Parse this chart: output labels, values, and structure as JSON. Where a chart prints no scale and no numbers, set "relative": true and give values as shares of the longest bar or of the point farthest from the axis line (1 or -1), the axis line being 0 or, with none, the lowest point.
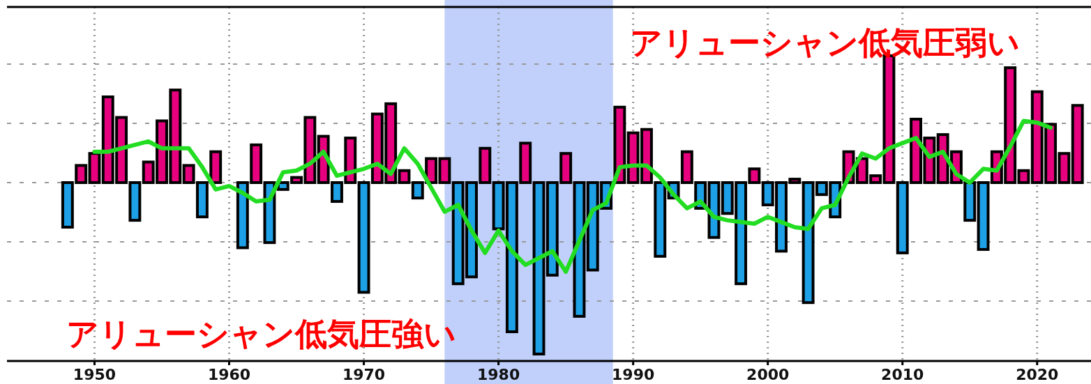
{
  "chart_data": {
    "type": "bar",
    "relative": true,
    "grid": true,
    "x": [
      1948,
      1949,
      1950,
      1951,
      1952,
      1953,
      1954,
      1955,
      1956,
      1957,
      1958,
      1959,
      1960,
      1961,
      1962,
      1963,
      1964,
      1965,
      1966,
      1967,
      1968,
      1969,
      1970,
      1971,
      1972,
      1973,
      1974,
      1975,
      1976,
      1977,
      1978,
      1979,
      1980,
      1981,
      1982,
      1983,
      1984,
      1985,
      1986,
      1987,
      1988,
      1989,
      1990,
      1991,
      1992,
      1993,
      1994,
      1995,
      1996,
      1997,
      1998,
      1999,
      2000,
      2001,
      2002,
      2003,
      2004,
      2005,
      2006,
      2007,
      2008,
      2009,
      2010,
      2011,
      2012,
      2013,
      2014,
      2015,
      2016,
      2017,
      2018,
      2019,
      2020,
      2021,
      2022,
      2023
    ],
    "series": [
      {
        "values": [
          -0.26,
          0.1,
          0.17,
          0.5,
          0.38,
          -0.22,
          0.12,
          0.36,
          0.54,
          0.1,
          -0.2,
          0.18,
          0,
          -0.38,
          0.22,
          -0.35,
          -0.04,
          0.03,
          0.38,
          0.27,
          -0.11,
          0.26,
          -0.64,
          0.4,
          0.46,
          0.07,
          -0.09,
          0.14,
          0.14,
          -0.59,
          -0.55,
          0.2,
          -0.27,
          -0.87,
          0.23,
          -1,
          -0.54,
          0.17,
          -0.78,
          -0.51,
          -0.15,
          0.44,
          0.29,
          0.31,
          -0.43,
          -0.09,
          0.18,
          -0.15,
          -0.32,
          -0.18,
          -0.59,
          0.08,
          -0.13,
          -0.4,
          0.02,
          -0.7,
          -0.07,
          -0.2,
          0.18,
          0.14,
          0.04,
          0.74,
          -0.41,
          0.37,
          0.26,
          0.28,
          0.18,
          -0.22,
          -0.39,
          0.18,
          0.67,
          0.07,
          0.53,
          0.34,
          0.17,
          0.45
        ],
        "colors": [
          "#1ea0e6",
          "#e6007e",
          "#e6007e",
          "#e6007e",
          "#e6007e",
          "#1ea0e6",
          "#e6007e",
          "#e6007e",
          "#e6007e",
          "#e6007e",
          "#1ea0e6",
          "#e6007e",
          "#e6007e",
          "#1ea0e6",
          "#e6007e",
          "#1ea0e6",
          "#1ea0e6",
          "#e6007e",
          "#e6007e",
          "#e6007e",
          "#1ea0e6",
          "#e6007e",
          "#1ea0e6",
          "#e6007e",
          "#e6007e",
          "#e6007e",
          "#1ea0e6",
          "#e6007e",
          "#e6007e",
          "#1ea0e6",
          "#1ea0e6",
          "#e6007e",
          "#1ea0e6",
          "#1ea0e6",
          "#e6007e",
          "#1ea0e6",
          "#1ea0e6",
          "#e6007e",
          "#1ea0e6",
          "#1ea0e6",
          "#1ea0e6",
          "#e6007e",
          "#e6007e",
          "#e6007e",
          "#1ea0e6",
          "#1ea0e6",
          "#e6007e",
          "#1ea0e6",
          "#1ea0e6",
          "#1ea0e6",
          "#1ea0e6",
          "#e6007e",
          "#1ea0e6",
          "#1ea0e6",
          "#e6007e",
          "#1ea0e6",
          "#1ea0e6",
          "#1ea0e6",
          "#e6007e",
          "#e6007e",
          "#e6007e",
          "#e6007e",
          "#1ea0e6",
          "#e6007e",
          "#e6007e",
          "#e6007e",
          "#e6007e",
          "#1ea0e6",
          "#1ea0e6",
          "#e6007e",
          "#e6007e",
          "#e6007e",
          "#e6007e",
          "#e6007e",
          "#e6007e",
          "#e6007e"
        ]
      },
      {
        "type": "line",
        "color": "#22dd22",
        "x": [
          1950,
          1951,
          1952,
          1953,
          1954,
          1955,
          1956,
          1957,
          1958,
          1959,
          1960,
          1961,
          1962,
          1963,
          1964,
          1965,
          1966,
          1967,
          1968,
          1969,
          1970,
          1971,
          1972,
          1973,
          1974,
          1975,
          1976,
          1977,
          1978,
          1979,
          1980,
          1981,
          1982,
          1983,
          1984,
          1985,
          1986,
          1987,
          1988,
          1989,
          1990,
          1991,
          1992,
          1993,
          1994,
          1995,
          1996,
          1997,
          1998,
          1999,
          2000,
          2001,
          2002,
          2003,
          2004,
          2005,
          2006,
          2007,
          2008,
          2009,
          2010,
          2011,
          2012,
          2013,
          2014,
          2015,
          2016,
          2017,
          2018,
          2019,
          2020,
          2021
        ],
        "values": [
          0.18,
          0.18,
          0.2,
          0.22,
          0.24,
          0.2,
          0.2,
          0.2,
          0.09,
          -0.04,
          -0.02,
          -0.06,
          -0.11,
          -0.1,
          0.06,
          0.07,
          0.11,
          0.18,
          0.04,
          0.06,
          0.08,
          0.11,
          0.05,
          0.2,
          0.11,
          -0.03,
          -0.17,
          -0.13,
          -0.28,
          -0.41,
          -0.28,
          -0.4,
          -0.48,
          -0.44,
          -0.4,
          -0.52,
          -0.34,
          -0.16,
          -0.12,
          0.09,
          0.1,
          0.1,
          0.03,
          -0.07,
          -0.15,
          -0.11,
          -0.2,
          -0.22,
          -0.23,
          -0.24,
          -0.2,
          -0.23,
          -0.26,
          -0.27,
          -0.15,
          -0.13,
          0.03,
          0.17,
          0.14,
          0.2,
          0.23,
          0.26,
          0.15,
          0.18,
          0.05,
          0.0,
          0.08,
          0.07,
          0.21,
          0.36,
          0.35,
          0.32
        ]
      }
    ],
    "xlim": [
      1943.5,
      2024
    ],
    "xticks": [
      1950,
      1960,
      1970,
      1980,
      1990,
      2000,
      2010,
      2020
    ],
    "bands": [
      {
        "axis": "x",
        "from": 1976,
        "to": 1988.5,
        "color": "#c0d0fa"
      }
    ],
    "annotations": [
      "アリューシャン低気圧弱い",
      "アリューシャン低気圧強い"
    ]
  }
}
